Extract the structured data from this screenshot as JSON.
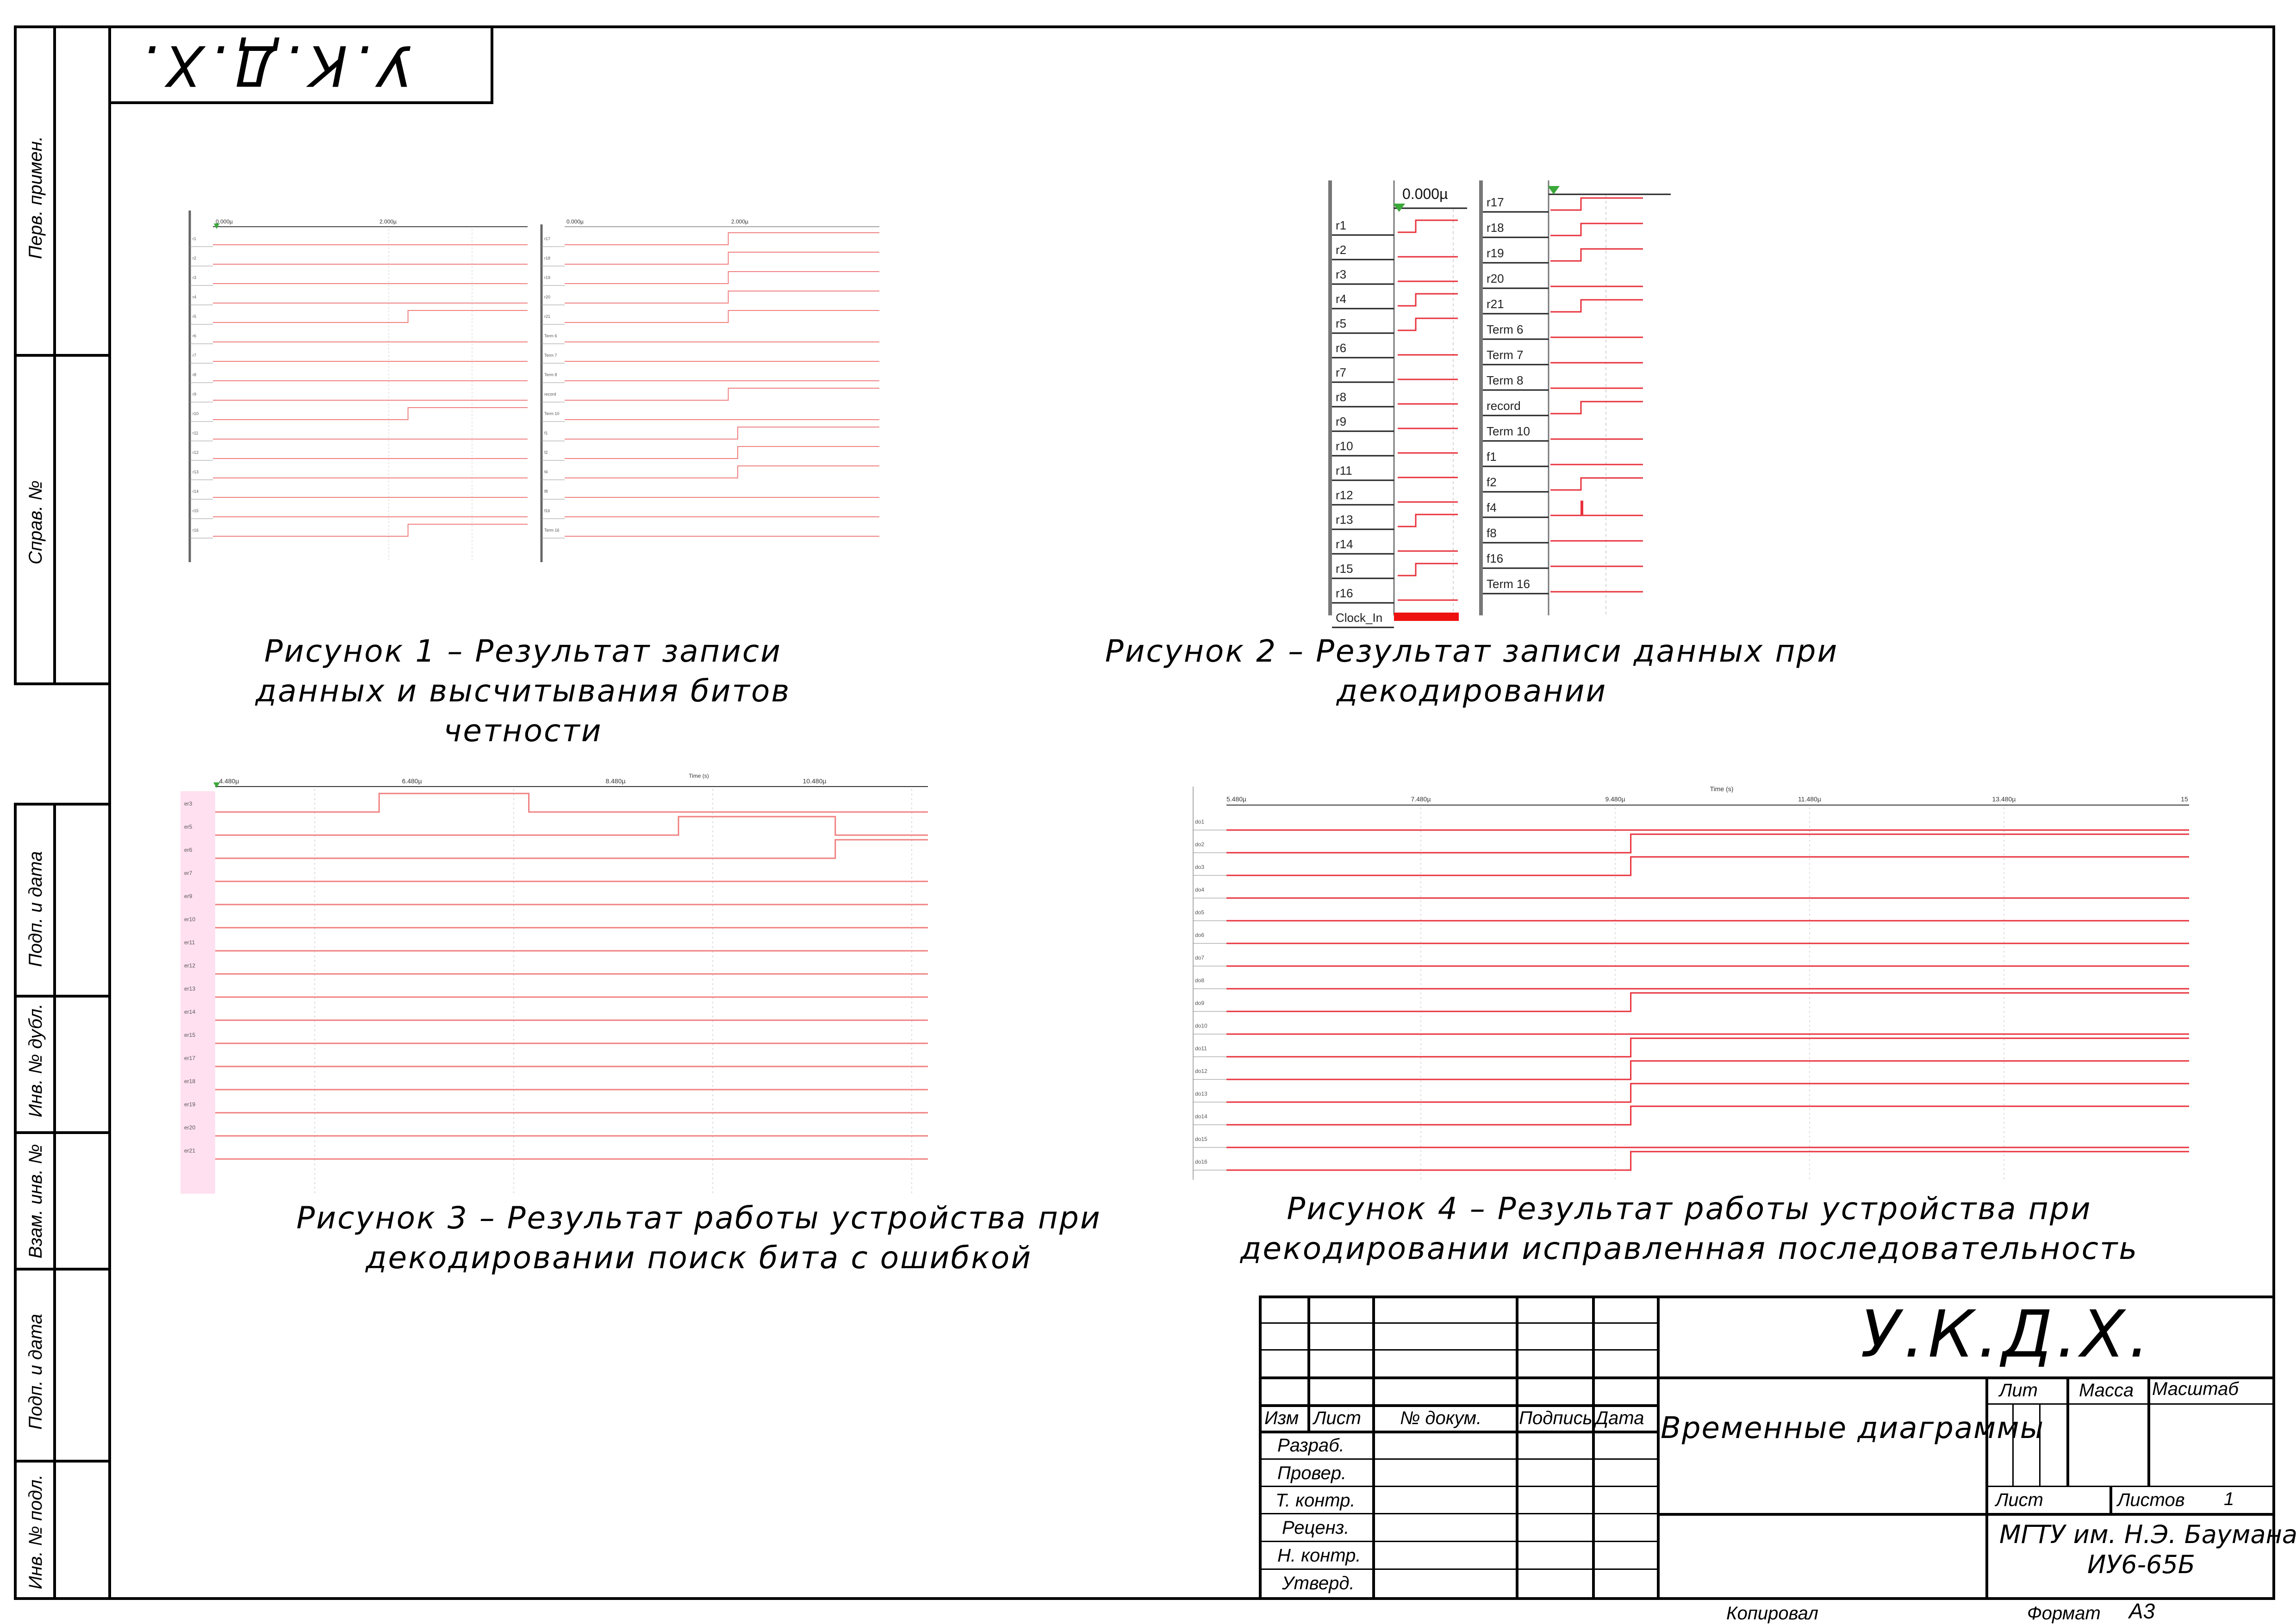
{
  "stamp_corner": "У.К.Д.Х.",
  "side_labels": {
    "perv_primen": "Перв. примен.",
    "sprav_no": "Справ. №",
    "podp_data_1": "Подп. и дата",
    "inv_no_dubl": "Инв. № дубл.",
    "vzam_inv_no": "Взам. инв. №",
    "podp_data_2": "Подп. и дата",
    "inv_no_podl": "Инв. № подл."
  },
  "captions": {
    "fig1": "Рисунок 1 – Результат записи данных и высчитывания битов четности",
    "fig2": "Рисунок 2 – Результат записи данных при декодировании",
    "fig3": "Рисунок 3 – Результат работы устройства при декодировании поиск бита с ошибкой",
    "fig4": "Рисунок 4 – Результат работы устройства при декодировании исправленная последовательность"
  },
  "figure1": {
    "time_ticks": [
      "0.000µ",
      "2.000µ",
      "0.000µ",
      "2.000µ"
    ],
    "left_labels": [
      "r1",
      "r2",
      "r3",
      "r4",
      "r5",
      "r6",
      "r7",
      "r8",
      "r9",
      "r10",
      "r11",
      "r12",
      "r13",
      "r14",
      "r15",
      "r16"
    ],
    "right_labels": [
      "r17",
      "r18",
      "r19",
      "r20",
      "r21",
      "Term 6",
      "Term 7",
      "Term 8",
      "record",
      "Term 10",
      "f1",
      "f2",
      "f4",
      "f8",
      "f16",
      "Term 16"
    ]
  },
  "figure2": {
    "time_marker": "0.000µ",
    "left_labels": [
      "r1",
      "r2",
      "r3",
      "r4",
      "r5",
      "r6",
      "r7",
      "r8",
      "r9",
      "r10",
      "r11",
      "r12",
      "r13",
      "r14",
      "r15",
      "r16",
      "Clock_In"
    ],
    "right_labels": [
      "r17",
      "r18",
      "r19",
      "r20",
      "r21",
      "Term 6",
      "Term 7",
      "Term 8",
      "record",
      "Term 10",
      "f1",
      "f2",
      "f4",
      "f8",
      "f16",
      "Term 16"
    ]
  },
  "figure3": {
    "axis_title": "Time (s)",
    "time_ticks": [
      "4.480µ",
      "6.480µ",
      "8.480µ",
      "10.480µ"
    ],
    "labels": [
      "er3",
      "er5",
      "er6",
      "er7",
      "er9",
      "er10",
      "er11",
      "er12",
      "er13",
      "er14",
      "er15",
      "er17",
      "er18",
      "er19",
      "er20",
      "er21"
    ]
  },
  "figure4": {
    "axis_title": "Time (s)",
    "time_ticks": [
      "5.480µ",
      "7.480µ",
      "9.480µ",
      "11.480µ",
      "13.480µ",
      "15"
    ],
    "labels": [
      "do1",
      "do2",
      "do3",
      "do4",
      "do5",
      "do6",
      "do7",
      "do8",
      "do9",
      "do10",
      "do11",
      "do12",
      "do13",
      "do14",
      "do15",
      "do16"
    ]
  },
  "title_block": {
    "designation": "У.К.Д.Х.",
    "doc_title": "Временные диаграммы",
    "col_izm": "Изм",
    "col_list": "Лист",
    "col_no_dokum": "№ докум.",
    "col_podpis": "Подпись",
    "col_data": "Дата",
    "row_razrab": "Разраб.",
    "row_prover": "Провер.",
    "row_tkontr": "Т. контр.",
    "row_recenz": "Реценз.",
    "row_nkontr": "Н. контр.",
    "row_utverd": "Утверд.",
    "lit": "Лит",
    "massa": "Масса",
    "masshtab": "Масштаб",
    "list": "Лист",
    "listov": "Листов",
    "listov_value": "1",
    "org_line1": "МГТУ им. Н.Э. Баумана",
    "org_line2": "ИУ6-65Б",
    "kopiroval": "Копировал",
    "format_label": "Формат",
    "format_value": "А3"
  },
  "colors": {
    "signal": "#e8323c",
    "signal_light": "#f08080",
    "marker_green": "#3aa83a",
    "clock_fill": "#ee1111",
    "label_bg_pink": "#ffe0f0"
  }
}
